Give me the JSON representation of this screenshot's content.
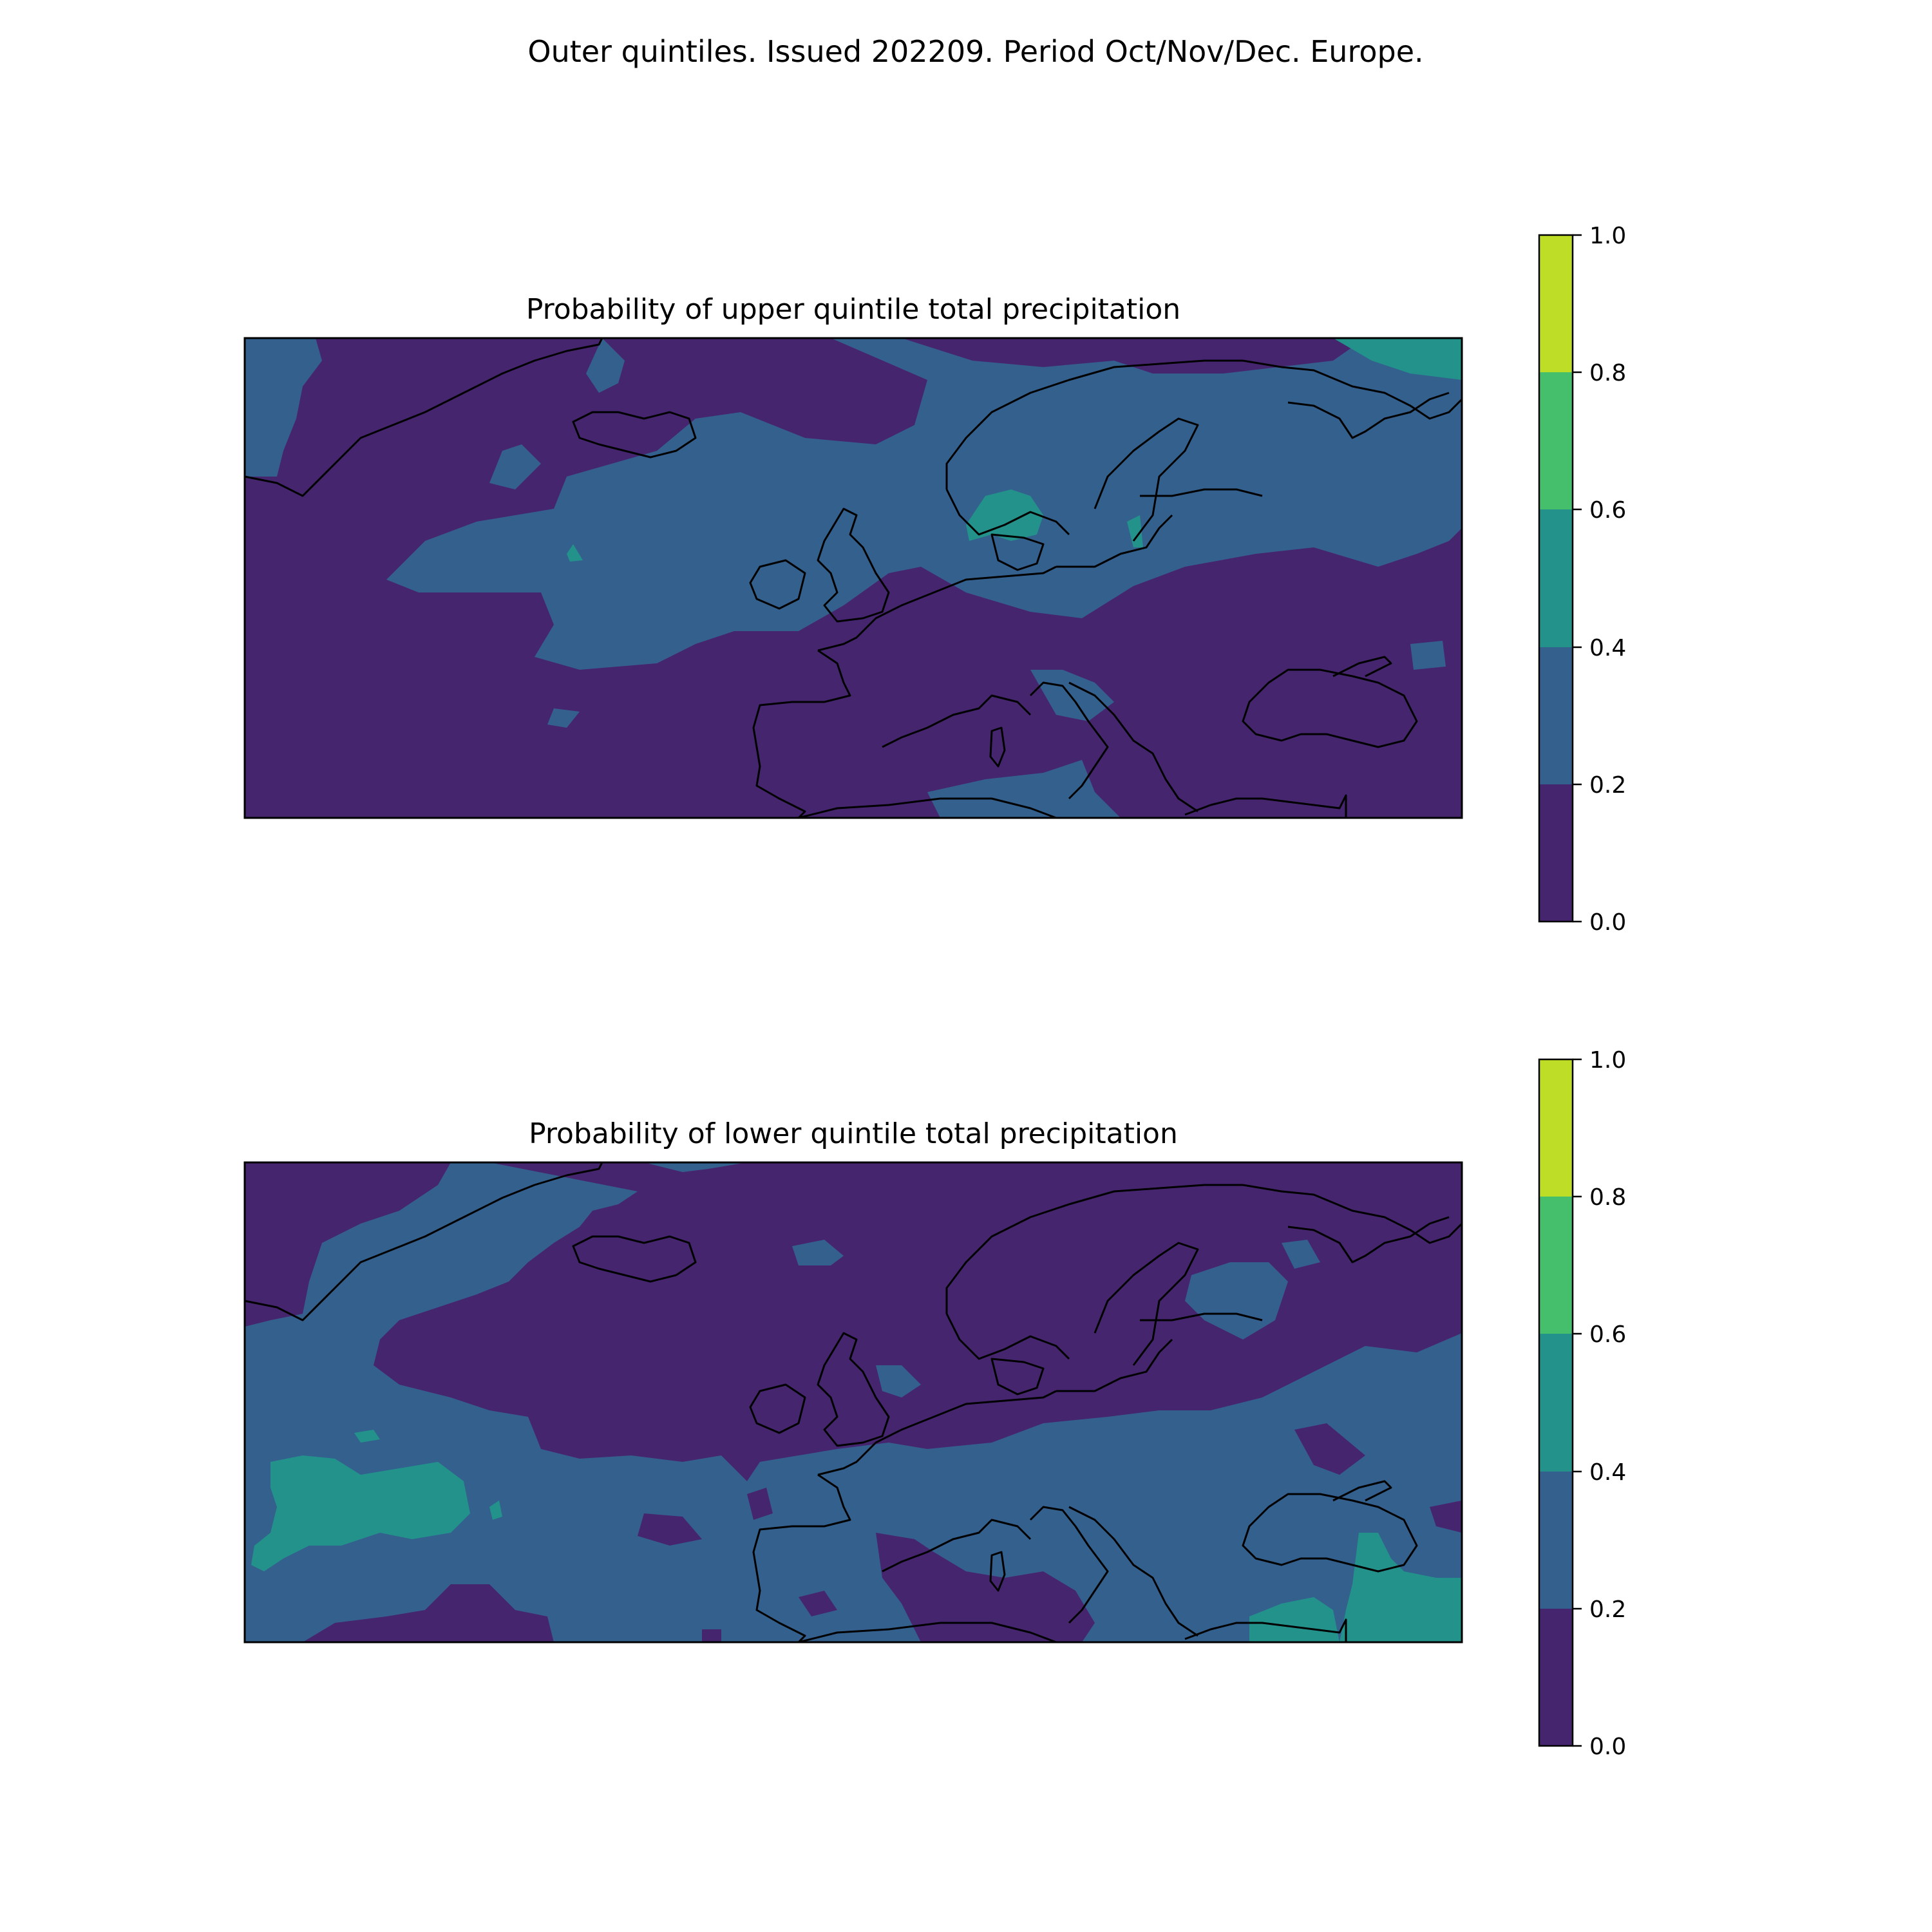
{
  "figure": {
    "suptitle": "Outer quintiles. Issued 202209. Period Oct/Nov/Dec. Europe."
  },
  "panels": [
    {
      "title": "Probability of upper quintile total precipitation",
      "dominant_band_index": 0,
      "colorbar": {
        "ticks": [
          "0.0",
          "0.2",
          "0.4",
          "0.6",
          "0.8",
          "1.0"
        ]
      }
    },
    {
      "title": "Probability of lower quintile total precipitation",
      "dominant_band_index": 1,
      "colorbar": {
        "ticks": [
          "0.0",
          "0.2",
          "0.4",
          "0.6",
          "0.8",
          "1.0"
        ]
      }
    }
  ],
  "chart_data": {
    "type": "heatmap",
    "colorbar_levels": [
      0.0,
      0.2,
      0.4,
      0.6,
      0.8,
      1.0
    ],
    "colorbar_range": [
      0.0,
      1.0
    ],
    "band_colors": [
      "#46256f",
      "#34608e",
      "#23928a",
      "#46bf6c",
      "#bedd26"
    ],
    "coastline_color": "#000000",
    "grid": false
  }
}
